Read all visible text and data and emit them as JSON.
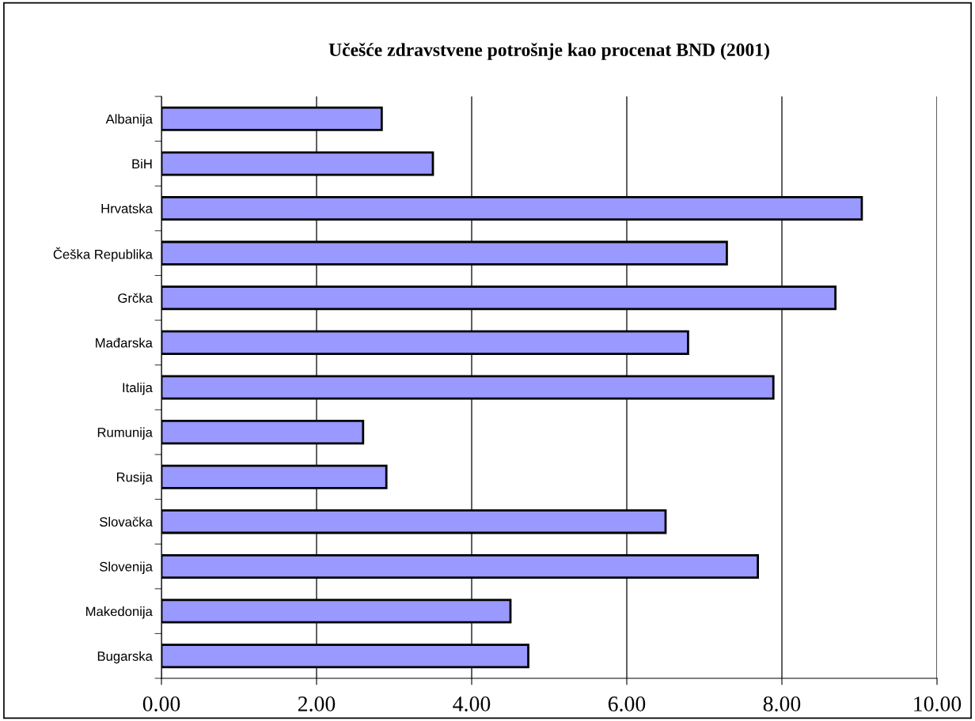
{
  "chart_data": {
    "type": "bar",
    "orientation": "horizontal",
    "title": "Učešće zdravstvene potrošnje kao procenat BND (2001)",
    "categories": [
      "Albanija",
      "BiH",
      "Hrvatska",
      "Češka Republika",
      "Grčka",
      "Mađarska",
      "Italija",
      "Rumunija",
      "Rusija",
      "Slovačka",
      "Slovenija",
      "Makedonija",
      "Bugarska"
    ],
    "values": [
      2.84,
      3.5,
      9.03,
      7.29,
      8.69,
      6.79,
      7.89,
      2.6,
      2.9,
      6.5,
      7.69,
      4.5,
      4.73
    ],
    "color": "#9999ff",
    "xlim": [
      0,
      10
    ],
    "xticks": [
      {
        "value": 0,
        "label": "0.00"
      },
      {
        "value": 2,
        "label": "2.00"
      },
      {
        "value": 4,
        "label": "4.00"
      },
      {
        "value": 6,
        "label": "6.00"
      },
      {
        "value": 8,
        "label": "8.00"
      },
      {
        "value": 10,
        "label": "10.00"
      }
    ],
    "grid": "x",
    "legend": false
  }
}
